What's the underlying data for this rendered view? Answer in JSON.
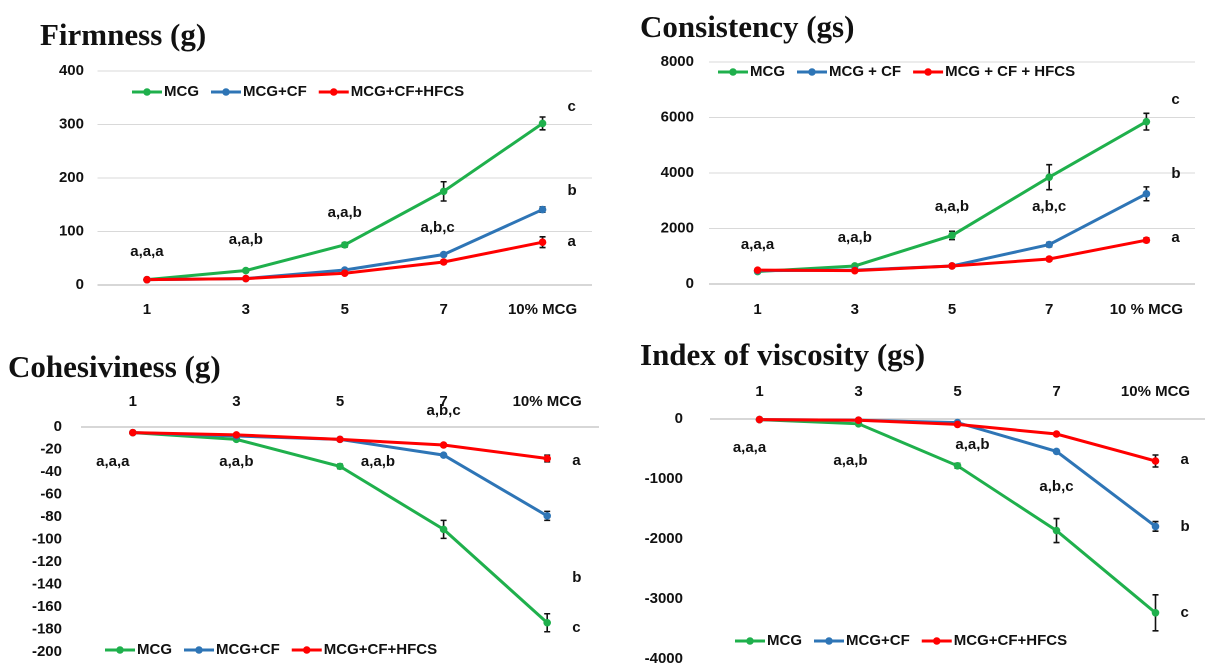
{
  "chart_data": [
    {
      "type": "line",
      "title": "Firmness (g)",
      "categories": [
        "1",
        "3",
        "5",
        "7",
        "10% MCG"
      ],
      "series": [
        {
          "name": "MCG",
          "color": "#1fb04c",
          "values": [
            10,
            27,
            75,
            175,
            302
          ],
          "errors": [
            2,
            3,
            4,
            18,
            12
          ],
          "end_label": "c"
        },
        {
          "name": "MCG+CF",
          "color": "#2e75b6",
          "values": [
            10,
            12,
            28,
            57,
            141
          ],
          "errors": [
            1,
            1,
            2,
            3,
            5
          ],
          "end_label": "b"
        },
        {
          "name": "MCG+CF+HFCS",
          "color": "#ff0000",
          "values": [
            10,
            12,
            22,
            43,
            80
          ],
          "errors": [
            1,
            1,
            2,
            3,
            10
          ],
          "end_label": "a"
        }
      ],
      "group_labels": [
        "a,a,a",
        "a,a,b",
        "a,a,b",
        "a,b,c",
        null
      ],
      "ylim": [
        0,
        400
      ],
      "yticks": [
        0,
        100,
        200,
        300,
        400
      ],
      "grid": true,
      "legend": "top",
      "xaxis_position": "bottom"
    },
    {
      "type": "line",
      "title": "Consistency (gs)",
      "categories": [
        "1",
        "3",
        "5",
        "7",
        "10 % MCG"
      ],
      "series": [
        {
          "name": "MCG",
          "color": "#1fb04c",
          "values": [
            450,
            650,
            1750,
            3850,
            5850
          ],
          "errors": [
            50,
            50,
            150,
            450,
            300
          ],
          "end_label": "c"
        },
        {
          "name": "MCG + CF",
          "color": "#2e75b6",
          "values": [
            480,
            500,
            650,
            1420,
            3250
          ],
          "errors": [
            30,
            30,
            50,
            80,
            250
          ],
          "end_label": "b"
        },
        {
          "name": "MCG + CF + HFCS",
          "color": "#ff0000",
          "values": [
            500,
            480,
            650,
            900,
            1580
          ],
          "errors": [
            30,
            30,
            50,
            60,
            80
          ],
          "end_label": "a"
        }
      ],
      "group_labels": [
        "a,a,a",
        "a,a,b",
        "a,a,b",
        "a,b,c",
        null
      ],
      "ylim": [
        0,
        8000
      ],
      "yticks": [
        0,
        2000,
        4000,
        6000,
        8000
      ],
      "grid": true,
      "legend": "top",
      "xaxis_position": "bottom"
    },
    {
      "type": "line",
      "title": "Cohesiviness (g)",
      "categories": [
        "1",
        "3",
        "5",
        "7",
        "10% MCG"
      ],
      "series": [
        {
          "name": "MCG",
          "color": "#1fb04c",
          "values": [
            -5,
            -11,
            -35,
            -91,
            -174
          ],
          "errors": [
            1,
            1,
            2,
            8,
            8
          ],
          "end_label": "c"
        },
        {
          "name": "MCG+CF",
          "color": "#2e75b6",
          "values": [
            -5,
            -8,
            -11,
            -25,
            -79
          ],
          "errors": [
            1,
            1,
            1,
            1,
            4
          ],
          "end_label": "b"
        },
        {
          "name": "MCG+CF+HFCS",
          "color": "#ff0000",
          "values": [
            -5,
            -7,
            -11,
            -16,
            -28
          ],
          "errors": [
            1,
            1,
            1,
            1,
            3
          ],
          "end_label": "a"
        }
      ],
      "group_labels": [
        "a,a,a",
        "a,a,b",
        "a,a,b",
        "a,b,c",
        null
      ],
      "ylim": [
        -200,
        0
      ],
      "yticks": [
        -200,
        -180,
        -160,
        -140,
        -120,
        -100,
        -80,
        -60,
        -40,
        -20,
        0
      ],
      "grid": false,
      "legend": "bottom",
      "xaxis_position": "top"
    },
    {
      "type": "line",
      "title": "Index of viscosity (gs)",
      "categories": [
        "1",
        "3",
        "5",
        "7",
        "10% MCG"
      ],
      "series": [
        {
          "name": "MCG",
          "color": "#1fb04c",
          "values": [
            -10,
            -80,
            -780,
            -1860,
            -3230
          ],
          "errors": [
            10,
            10,
            40,
            200,
            300
          ],
          "end_label": "c"
        },
        {
          "name": "MCG+CF",
          "color": "#2e75b6",
          "values": [
            -10,
            -20,
            -60,
            -540,
            -1790
          ],
          "errors": [
            10,
            10,
            10,
            20,
            80
          ],
          "end_label": "b"
        },
        {
          "name": "MCG+CF+HFCS",
          "color": "#ff0000",
          "values": [
            -10,
            -20,
            -90,
            -250,
            -700
          ],
          "errors": [
            10,
            10,
            10,
            20,
            100
          ],
          "end_label": "a"
        }
      ],
      "group_labels": [
        "a,a,a",
        "a,a,b",
        "a,a,b",
        "a,b,c",
        null
      ],
      "ylim": [
        -4000,
        0
      ],
      "yticks": [
        -4000,
        -3000,
        -2000,
        -1000,
        0
      ],
      "grid": false,
      "legend": "bottom",
      "xaxis_position": "top"
    }
  ]
}
